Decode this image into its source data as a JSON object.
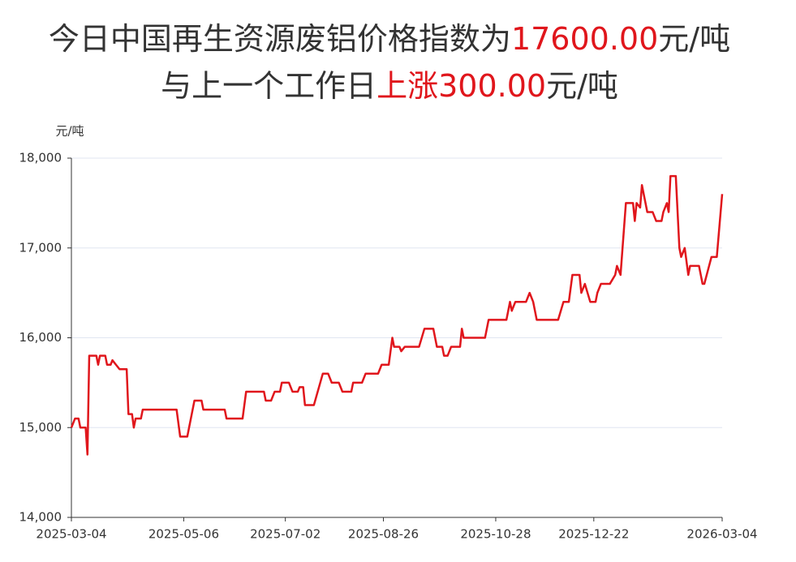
{
  "chart_data": {
    "type": "line",
    "title_lines": [
      [
        {
          "text": "今日中国再生资源废铝价格指数为",
          "color": "#333333"
        },
        {
          "text": "17600.00",
          "color": "#e0161c"
        },
        {
          "text": "元/吨",
          "color": "#333333"
        }
      ],
      [
        {
          "text": "与上一个工作日",
          "color": "#333333"
        },
        {
          "text": "上涨300.00",
          "color": "#e0161c"
        },
        {
          "text": "元/吨",
          "color": "#333333"
        }
      ]
    ],
    "y_label": "元/吨",
    "xlim": [
      "2025-03-04",
      "2026-03-04"
    ],
    "xticks": [
      "2025-03-04",
      "2025-05-06",
      "2025-07-02",
      "2025-08-26",
      "2025-10-28",
      "2025-12-22",
      "2026-03-04"
    ],
    "ylim": [
      14000,
      18000
    ],
    "yticks": [
      {
        "value": 14000,
        "label": "14,000"
      },
      {
        "value": 15000,
        "label": "15,000"
      },
      {
        "value": 16000,
        "label": "16,000"
      },
      {
        "value": 17000,
        "label": "17,000"
      },
      {
        "value": 18000,
        "label": "18,000"
      }
    ],
    "grid": true,
    "x": [
      "2025-03-04",
      "2025-03-06",
      "2025-03-08",
      "2025-03-09",
      "2025-03-12",
      "2025-03-13",
      "2025-03-14",
      "2025-03-18",
      "2025-03-19",
      "2025-03-20",
      "2025-03-23",
      "2025-03-24",
      "2025-03-26",
      "2025-03-27",
      "2025-03-29",
      "2025-03-31",
      "2025-04-04",
      "2025-04-05",
      "2025-04-07",
      "2025-04-08",
      "2025-04-09",
      "2025-04-12",
      "2025-04-13",
      "2025-05-02",
      "2025-05-04",
      "2025-05-08",
      "2025-05-12",
      "2025-05-16",
      "2025-05-17",
      "2025-05-29",
      "2025-05-30",
      "2025-06-08",
      "2025-06-10",
      "2025-06-20",
      "2025-06-21",
      "2025-06-24",
      "2025-06-26",
      "2025-06-29",
      "2025-06-30",
      "2025-07-04",
      "2025-07-06",
      "2025-07-09",
      "2025-07-10",
      "2025-07-12",
      "2025-07-13",
      "2025-07-18",
      "2025-07-23",
      "2025-07-26",
      "2025-07-28",
      "2025-08-01",
      "2025-08-03",
      "2025-08-08",
      "2025-08-09",
      "2025-08-14",
      "2025-08-16",
      "2025-08-23",
      "2025-08-25",
      "2025-08-29",
      "2025-08-31",
      "2025-09-01",
      "2025-09-04",
      "2025-09-05",
      "2025-09-07",
      "2025-09-15",
      "2025-09-18",
      "2025-09-23",
      "2025-09-25",
      "2025-09-28",
      "2025-09-29",
      "2025-10-01",
      "2025-10-03",
      "2025-10-08",
      "2025-10-09",
      "2025-10-10",
      "2025-10-22",
      "2025-10-24",
      "2025-11-03",
      "2025-11-05",
      "2025-11-06",
      "2025-11-08",
      "2025-11-14",
      "2025-11-16",
      "2025-11-18",
      "2025-11-20",
      "2025-12-02",
      "2025-12-05",
      "2025-12-08",
      "2025-12-10",
      "2025-12-14",
      "2025-12-15",
      "2025-12-17",
      "2025-12-20",
      "2025-12-23",
      "2025-12-24",
      "2025-12-26",
      "2025-12-31",
      "2026-01-03",
      "2026-01-04",
      "2026-01-06",
      "2026-01-09",
      "2026-01-13",
      "2026-01-14",
      "2026-01-15",
      "2026-01-17",
      "2026-01-18",
      "2026-01-20",
      "2026-01-21",
      "2026-01-24",
      "2026-01-26",
      "2026-01-29",
      "2026-01-30",
      "2026-02-01",
      "2026-02-02",
      "2026-02-03",
      "2026-02-06",
      "2026-02-08",
      "2026-02-09",
      "2026-02-11",
      "2026-02-13",
      "2026-02-14",
      "2026-02-19",
      "2026-02-21",
      "2026-02-22",
      "2026-02-26",
      "2026-03-01",
      "2026-03-04"
    ],
    "series": [
      {
        "color": "#e0161c",
        "values": [
          15000,
          15100,
          15100,
          15000,
          15000,
          14700,
          15800,
          15800,
          15700,
          15800,
          15800,
          15700,
          15700,
          15750,
          15700,
          15650,
          15650,
          15150,
          15150,
          15000,
          15100,
          15100,
          15200,
          15200,
          14900,
          14900,
          15300,
          15300,
          15200,
          15200,
          15100,
          15100,
          15400,
          15400,
          15300,
          15300,
          15400,
          15400,
          15500,
          15500,
          15400,
          15400,
          15450,
          15450,
          15250,
          15250,
          15600,
          15600,
          15500,
          15500,
          15400,
          15400,
          15500,
          15500,
          15600,
          15600,
          15700,
          15700,
          16000,
          15900,
          15900,
          15850,
          15900,
          15900,
          16100,
          16100,
          15900,
          15900,
          15800,
          15800,
          15900,
          15900,
          16100,
          16000,
          16000,
          16200,
          16200,
          16400,
          16300,
          16400,
          16400,
          16500,
          16400,
          16200,
          16200,
          16400,
          16400,
          16700,
          16700,
          16500,
          16600,
          16400,
          16400,
          16500,
          16600,
          16600,
          16700,
          16800,
          16700,
          17500,
          17500,
          17300,
          17500,
          17450,
          17700,
          17500,
          17400,
          17400,
          17300,
          17300,
          17400,
          17500,
          17400,
          17800,
          17800,
          17000,
          16900,
          17000,
          16700,
          16800,
          16800,
          16600,
          16600,
          16900,
          16900,
          17600
        ]
      }
    ]
  }
}
